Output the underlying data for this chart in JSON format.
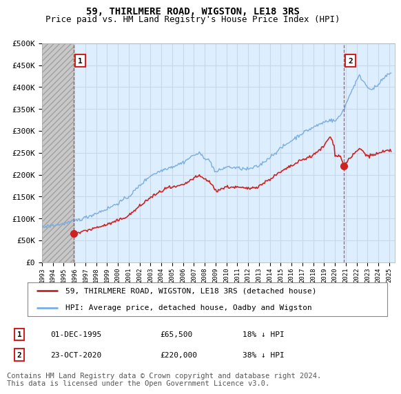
{
  "title": "59, THIRLMERE ROAD, WIGSTON, LE18 3RS",
  "subtitle": "Price paid vs. HM Land Registry's House Price Index (HPI)",
  "ylim": [
    0,
    500000
  ],
  "yticks": [
    0,
    50000,
    100000,
    150000,
    200000,
    250000,
    300000,
    350000,
    400000,
    450000,
    500000
  ],
  "ytick_labels": [
    "£0",
    "£50K",
    "£100K",
    "£150K",
    "£200K",
    "£250K",
    "£300K",
    "£350K",
    "£400K",
    "£450K",
    "£500K"
  ],
  "xlim_start": 1993.0,
  "xlim_end": 2025.5,
  "hatch_start": 1993.0,
  "hatch_end": 1995.92,
  "point1": {
    "year": 1995.92,
    "value": 65500,
    "label": "1",
    "date": "01-DEC-1995",
    "price": "£65,500",
    "hpi_diff": "18% ↓ HPI"
  },
  "point2": {
    "year": 2020.81,
    "value": 220000,
    "label": "2",
    "date": "23-OCT-2020",
    "price": "£220,000",
    "hpi_diff": "38% ↓ HPI"
  },
  "legend_line1": "59, THIRLMERE ROAD, WIGSTON, LE18 3RS (detached house)",
  "legend_line2": "HPI: Average price, detached house, Oadby and Wigston",
  "footer": "Contains HM Land Registry data © Crown copyright and database right 2024.\nThis data is licensed under the Open Government Licence v3.0.",
  "line_color_red": "#cc2222",
  "line_color_blue": "#7aade0",
  "bg_color": "#ffffff",
  "plot_bg_color": "#ddeeff",
  "grid_color": "#c8d8e8",
  "hatch_bg_color": "#c8c8c8",
  "annotation_box_color": "#cc2222",
  "title_fontsize": 10,
  "subtitle_fontsize": 9,
  "tick_fontsize": 8,
  "legend_fontsize": 8,
  "footer_fontsize": 7.5,
  "anno_num_fontsize": 8,
  "table_fontsize": 8
}
